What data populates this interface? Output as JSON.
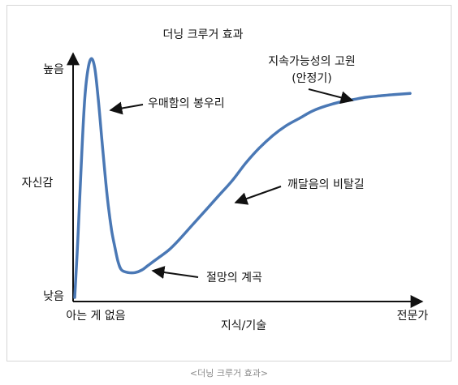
{
  "chart_data": {
    "type": "line",
    "title": "더닝 크루거 효과",
    "xlabel": "지식/기술",
    "ylabel": "자신감",
    "x_tick_labels": [
      "아는 게 없음",
      "전문가"
    ],
    "y_tick_labels": [
      "높음",
      "낮음"
    ],
    "xlim": [
      0,
      100
    ],
    "ylim": [
      0,
      100
    ],
    "grid": false,
    "series": [
      {
        "color": "#4a78b5",
        "x": [
          0,
          1,
          2,
          3,
          4,
          5,
          6,
          7,
          8,
          9,
          10,
          11,
          12,
          13,
          14,
          16,
          18,
          20,
          22,
          25,
          28,
          31,
          35,
          39,
          43,
          47,
          51,
          55,
          59,
          63,
          67,
          71,
          75,
          79,
          83,
          87,
          91,
          95,
          100
        ],
        "y": [
          0,
          25,
          55,
          80,
          92,
          96,
          92,
          80,
          65,
          50,
          37,
          27,
          20,
          14,
          11,
          10,
          10,
          11,
          13,
          16,
          19,
          23,
          29,
          35,
          41,
          47,
          54,
          60,
          65,
          69,
          72,
          75,
          77,
          78.5,
          79.5,
          80.5,
          81,
          81.5,
          82
        ]
      }
    ],
    "annotations": [
      {
        "text": "우매함의 봉우리",
        "x": 5,
        "y": 96
      },
      {
        "text": "절망의 계곡",
        "x": 16,
        "y": 10
      },
      {
        "text": "깨달음의 비탈길",
        "x": 47,
        "y": 47
      },
      {
        "text": "지속가능성의 고원",
        "subtext": "(안정기)",
        "x": 80,
        "y": 79
      }
    ]
  },
  "caption": "<더닝 크루거 효과>"
}
